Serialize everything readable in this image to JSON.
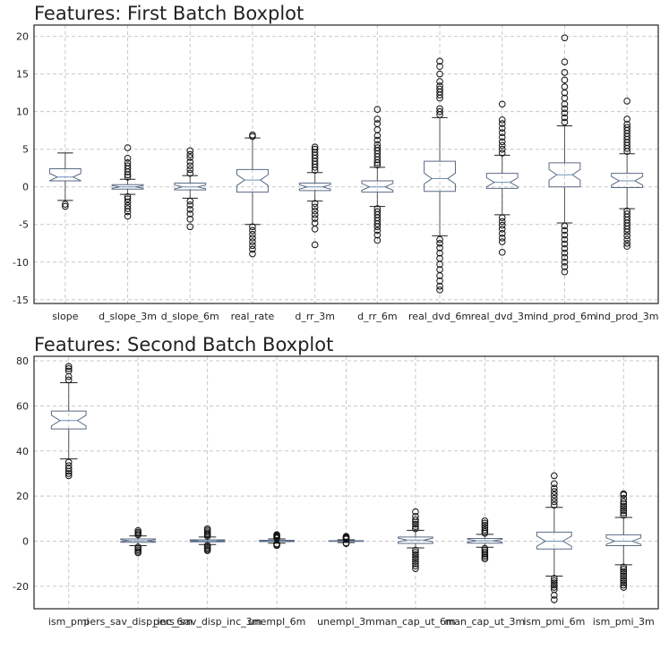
{
  "chart_data": [
    {
      "type": "boxplot",
      "title": "Features: First Batch Boxplot",
      "xlabel": "",
      "ylabel": "",
      "ylim": [
        -15.5,
        21.5
      ],
      "yticks": [
        -15,
        -10,
        -5,
        0,
        5,
        10,
        15,
        20
      ],
      "grid": true,
      "notched": true,
      "categories": [
        "slope",
        "d_slope_3m",
        "d_slope_6m",
        "real_rate",
        "d_rr_3m",
        "d_rr_6m",
        "real_dvd_6m",
        "real_dvd_3m",
        "ind_prod_6m",
        "ind_prod_3m"
      ],
      "boxes": [
        {
          "label": "slope",
          "whislo": -1.8,
          "q1": 0.8,
          "med": 1.3,
          "q3": 2.4,
          "whishi": 4.5,
          "fliers": [
            -2.3,
            -2.6
          ]
        },
        {
          "label": "d_slope_3m",
          "whislo": -1.0,
          "q1": -0.3,
          "med": 0.0,
          "q3": 0.3,
          "whishi": 1.0,
          "fliers": [
            1.3,
            1.6,
            2.0,
            2.4,
            2.8,
            3.2,
            3.8,
            5.2,
            -1.3,
            -1.6,
            -2.0,
            -2.5,
            -2.9,
            -3.3,
            -3.9
          ]
        },
        {
          "label": "d_slope_6m",
          "whislo": -1.5,
          "q1": -0.4,
          "med": 0.0,
          "q3": 0.5,
          "whishi": 1.5,
          "fliers": [
            1.8,
            2.3,
            2.8,
            3.3,
            3.9,
            4.3,
            4.8,
            -1.9,
            -2.4,
            -3.0,
            -3.6,
            -4.3,
            -5.3
          ]
        },
        {
          "label": "real_rate",
          "whislo": -5.0,
          "q1": -0.7,
          "med": 0.9,
          "q3": 2.3,
          "whishi": 6.5,
          "fliers": [
            6.7,
            6.9,
            -5.3,
            -5.8,
            -6.3,
            -6.8,
            -7.3,
            -7.8,
            -8.3,
            -8.9
          ]
        },
        {
          "label": "d_rr_3m",
          "whislo": -1.9,
          "q1": -0.5,
          "med": 0.0,
          "q3": 0.5,
          "whishi": 1.9,
          "fliers": [
            2.2,
            2.6,
            3.0,
            3.4,
            3.8,
            4.2,
            4.6,
            5.0,
            5.3,
            -2.2,
            -2.7,
            -3.2,
            -3.7,
            -4.2,
            -4.8,
            -5.6,
            -7.7
          ]
        },
        {
          "label": "d_rr_6m",
          "whislo": -2.6,
          "q1": -0.7,
          "med": 0.0,
          "q3": 0.8,
          "whishi": 2.6,
          "fliers": [
            2.9,
            3.2,
            3.6,
            4.0,
            4.4,
            4.8,
            5.2,
            5.6,
            6.2,
            6.8,
            7.6,
            8.4,
            9.0,
            10.3,
            -2.9,
            -3.3,
            -3.7,
            -4.1,
            -4.5,
            -4.9,
            -5.3,
            -5.8,
            -6.4,
            -7.1
          ]
        },
        {
          "label": "real_dvd_6m",
          "whislo": -6.5,
          "q1": -0.6,
          "med": 1.1,
          "q3": 3.4,
          "whishi": 9.2,
          "fliers": [
            9.6,
            10.0,
            10.4,
            11.8,
            12.2,
            12.6,
            13.0,
            13.4,
            14.0,
            15.0,
            16.0,
            16.7,
            -7.0,
            -7.5,
            -8.1,
            -8.8,
            -9.5,
            -10.3,
            -11.0,
            -11.8,
            -12.5,
            -13.2,
            -13.7
          ]
        },
        {
          "label": "real_dvd_3m",
          "whislo": -3.7,
          "q1": -0.2,
          "med": 0.6,
          "q3": 1.8,
          "whishi": 4.2,
          "fliers": [
            4.5,
            5.0,
            5.5,
            6.0,
            6.6,
            7.2,
            7.8,
            8.4,
            8.9,
            11.0,
            -4.1,
            -4.6,
            -5.1,
            -5.6,
            -6.2,
            -6.8,
            -7.3,
            -8.7
          ]
        },
        {
          "label": "ind_prod_6m",
          "whislo": -4.8,
          "q1": 0.0,
          "med": 1.6,
          "q3": 3.2,
          "whishi": 8.1,
          "fliers": [
            8.6,
            9.2,
            9.8,
            10.4,
            11.0,
            11.8,
            12.5,
            13.3,
            14.2,
            15.2,
            16.6,
            19.8,
            -5.2,
            -5.8,
            -6.4,
            -7.0,
            -7.6,
            -8.2,
            -8.8,
            -9.4,
            -10.0,
            -10.6,
            -11.3
          ]
        },
        {
          "label": "ind_prod_3m",
          "whislo": -2.9,
          "q1": -0.1,
          "med": 0.8,
          "q3": 1.8,
          "whishi": 4.4,
          "fliers": [
            4.7,
            5.1,
            5.5,
            5.9,
            6.3,
            6.7,
            7.1,
            7.5,
            7.9,
            8.3,
            9.0,
            11.4,
            -3.2,
            -3.6,
            -4.0,
            -4.4,
            -4.8,
            -5.2,
            -5.6,
            -6.0,
            -6.5,
            -7.0,
            -7.5,
            -7.9
          ]
        }
      ]
    },
    {
      "type": "boxplot",
      "title": "Features: Second Batch Boxplot",
      "xlabel": "",
      "ylabel": "",
      "ylim": [
        -30,
        82
      ],
      "yticks": [
        -20,
        0,
        20,
        40,
        60,
        80
      ],
      "grid": true,
      "notched": true,
      "categories": [
        "ism_pmi",
        "pers_sav_disp_inc_6m",
        "pers_sav_disp_inc_3m",
        "unempl_6m",
        "unempl_3m",
        "man_cap_ut_6m",
        "man_cap_ut_3m",
        "ism_pmi_6m",
        "ism_pmi_3m"
      ],
      "boxes": [
        {
          "label": "ism_pmi",
          "whislo": 36.5,
          "q1": 49.8,
          "med": 53.5,
          "q3": 57.7,
          "whishi": 70.3,
          "fliers": [
            71.5,
            73.0,
            75.5,
            76.5,
            77.5,
            35.0,
            33.5,
            32.2,
            31.0,
            30.0,
            29.0
          ]
        },
        {
          "label": "pers_sav_disp_inc_6m",
          "whislo": -2.0,
          "q1": -0.5,
          "med": 0.2,
          "q3": 1.0,
          "whishi": 2.3,
          "fliers": [
            2.8,
            3.4,
            4.0,
            4.7,
            -2.6,
            -3.2,
            -3.9,
            -4.6,
            -5.2
          ]
        },
        {
          "label": "pers_sav_disp_inc_3m",
          "whislo": -1.5,
          "q1": -0.3,
          "med": 0.1,
          "q3": 0.6,
          "whishi": 1.8,
          "fliers": [
            2.2,
            2.8,
            3.4,
            4.1,
            4.8,
            5.5,
            -1.9,
            -2.5,
            -3.1,
            -3.7,
            -4.2
          ]
        },
        {
          "label": "unempl_6m",
          "whislo": -0.9,
          "q1": -0.2,
          "med": 0.1,
          "q3": 0.4,
          "whishi": 1.0,
          "fliers": [
            1.3,
            1.7,
            2.1,
            2.5,
            2.9,
            -1.2,
            -1.6,
            -2.0
          ]
        },
        {
          "label": "unempl_3m",
          "whislo": -0.6,
          "q1": -0.1,
          "med": 0.0,
          "q3": 0.2,
          "whishi": 0.6,
          "fliers": [
            0.9,
            1.2,
            1.5,
            1.8,
            2.1,
            -0.8,
            -1.1
          ]
        },
        {
          "label": "man_cap_ut_6m",
          "whislo": -3.0,
          "q1": -1.0,
          "med": 0.5,
          "q3": 1.8,
          "whishi": 4.8,
          "fliers": [
            5.5,
            6.5,
            7.5,
            8.5,
            9.5,
            11.0,
            13.0,
            -4.0,
            -5.0,
            -6.0,
            -7.0,
            -8.0,
            -9.0,
            -10.0,
            -11.0,
            -12.2
          ]
        },
        {
          "label": "man_cap_ut_3m",
          "whislo": -2.7,
          "q1": -0.9,
          "med": 0.2,
          "q3": 1.2,
          "whishi": 3.0,
          "fliers": [
            3.5,
            4.2,
            5.0,
            6.0,
            7.0,
            8.0,
            9.0,
            -3.2,
            -4.0,
            -4.8,
            -5.6,
            -6.4,
            -7.2,
            -7.9
          ]
        },
        {
          "label": "ism_pmi_6m",
          "whislo": -15.5,
          "q1": -3.5,
          "med": 0.0,
          "q3": 4.0,
          "whishi": 15.0,
          "fliers": [
            16.0,
            17.5,
            19.0,
            20.5,
            22.0,
            23.5,
            25.5,
            29.0,
            -16.5,
            -17.5,
            -18.5,
            -19.5,
            -20.5,
            -21.5,
            -24.0,
            -26.0
          ]
        },
        {
          "label": "ism_pmi_3m",
          "whislo": -10.5,
          "q1": -2.0,
          "med": 0.0,
          "q3": 2.8,
          "whishi": 10.5,
          "fliers": [
            11.5,
            12.5,
            13.5,
            14.5,
            15.5,
            16.5,
            17.5,
            19.0,
            20.5,
            21.0,
            -11.5,
            -12.5,
            -13.5,
            -14.5,
            -15.5,
            -16.5,
            -17.5,
            -18.5,
            -19.5,
            -20.5
          ]
        }
      ]
    }
  ]
}
